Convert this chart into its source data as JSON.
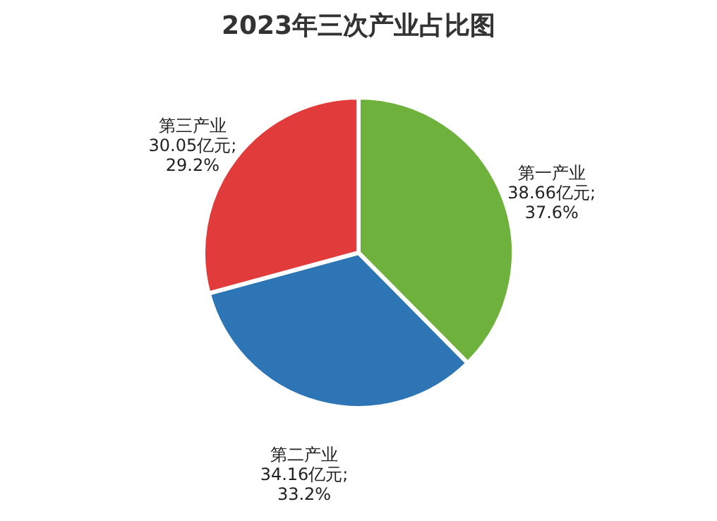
{
  "chart_data": {
    "type": "pie",
    "title": "2023年三次产业占比图",
    "categories": [
      "第一产业",
      "第二产业",
      "第三产业"
    ],
    "values": [
      38.66,
      34.16,
      30.05
    ],
    "value_labels": [
      "38.66亿元;\n37.6%",
      "34.16亿元;\n33.2%",
      "30.05亿元;\n29.2%"
    ],
    "colors": [
      "#6eb13c",
      "#2e75b6",
      "#e23b3b"
    ]
  }
}
